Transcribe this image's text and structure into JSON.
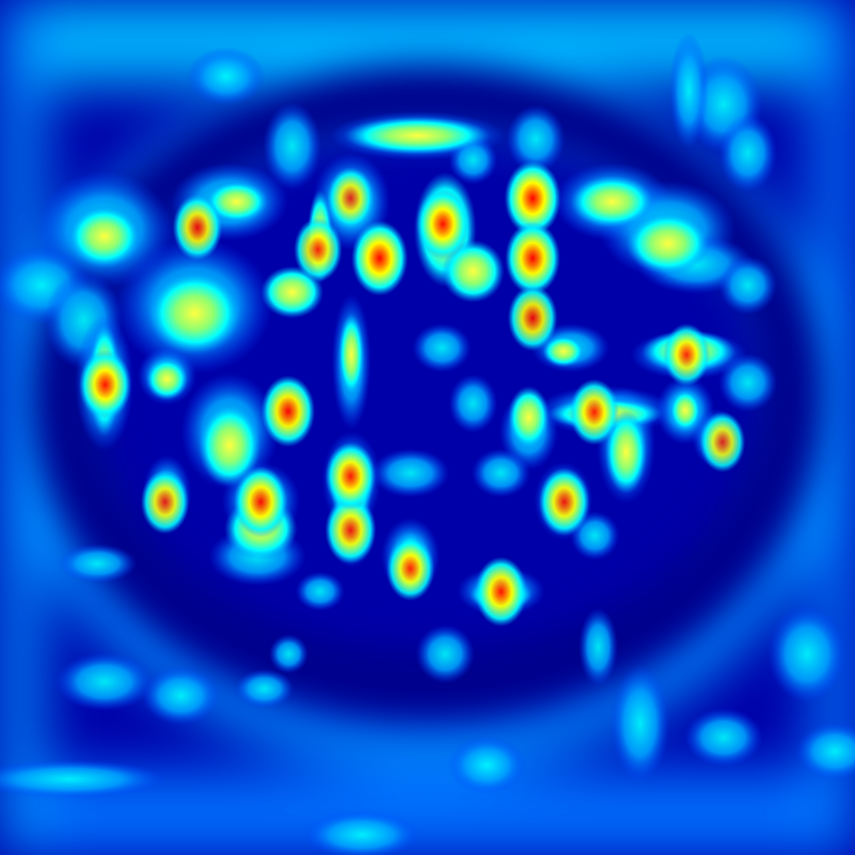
{
  "image": {
    "kind": "jet-colormap activation heatmap",
    "colormap": [
      "#00007f",
      "#0000ff",
      "#0080ff",
      "#00ffff",
      "#80ff80",
      "#ffff00",
      "#ff8000",
      "#ff0000"
    ]
  },
  "chart_data": {
    "type": "heatmap",
    "title": "",
    "xlabel": "",
    "ylabel": "",
    "colormap": "jet",
    "value_range": [
      0,
      1
    ],
    "grid": false,
    "legend": "none",
    "hotspots": [
      {
        "x": 0.623,
        "y": 0.232,
        "value": 1.0
      },
      {
        "x": 0.444,
        "y": 0.302,
        "value": 1.0
      },
      {
        "x": 0.623,
        "y": 0.302,
        "value": 0.95
      },
      {
        "x": 0.518,
        "y": 0.262,
        "value": 0.9
      },
      {
        "x": 0.337,
        "y": 0.481,
        "value": 0.9
      },
      {
        "x": 0.305,
        "y": 0.587,
        "value": 0.9
      },
      {
        "x": 0.586,
        "y": 0.692,
        "value": 0.85
      },
      {
        "x": 0.123,
        "y": 0.45,
        "value": 0.85
      },
      {
        "x": 0.41,
        "y": 0.62,
        "value": 0.8
      },
      {
        "x": 0.66,
        "y": 0.587,
        "value": 0.8
      },
      {
        "x": 0.231,
        "y": 0.266,
        "value": 0.75
      },
      {
        "x": 0.41,
        "y": 0.557,
        "value": 0.8
      },
      {
        "x": 0.695,
        "y": 0.482,
        "value": 0.75
      },
      {
        "x": 0.193,
        "y": 0.587,
        "value": 0.7
      },
      {
        "x": 0.623,
        "y": 0.372,
        "value": 0.75
      },
      {
        "x": 0.803,
        "y": 0.415,
        "value": 0.65
      },
      {
        "x": 0.372,
        "y": 0.292,
        "value": 0.7
      },
      {
        "x": 0.41,
        "y": 0.232,
        "value": 0.65
      },
      {
        "x": 0.48,
        "y": 0.665,
        "value": 0.7
      },
      {
        "x": 0.845,
        "y": 0.517,
        "value": 0.6
      }
    ]
  }
}
